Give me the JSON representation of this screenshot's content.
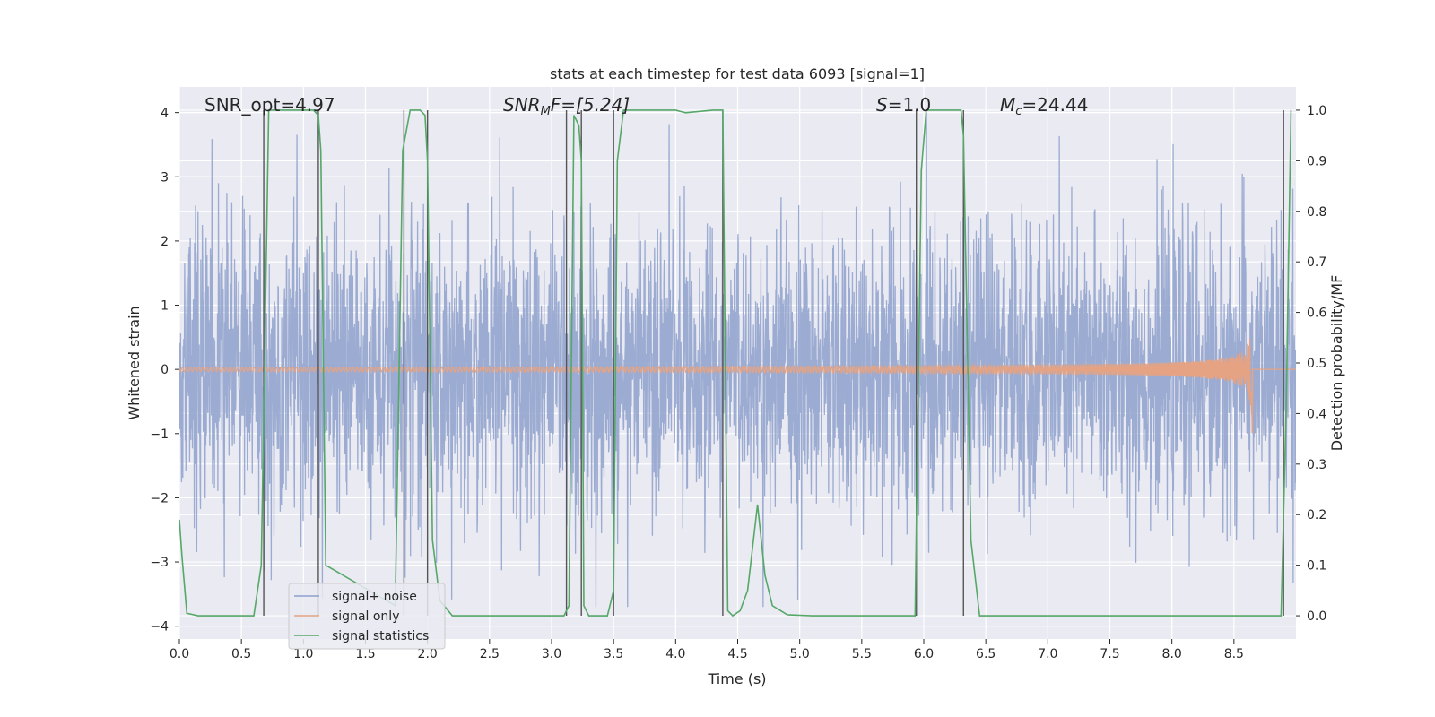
{
  "chart_data": {
    "type": "line",
    "title": "stats at each timestep for test data 6093 [signal=1]",
    "xlabel": "Time (s)",
    "ylabel": "Whitened strain",
    "ylabel_right": "Detection probability/MF",
    "xlim": [
      0,
      9.0
    ],
    "ylim": [
      -4.2,
      4.4
    ],
    "ylim_right": [
      -0.046,
      1.046
    ],
    "x_ticks": [
      "0.0",
      "0.5",
      "1.0",
      "1.5",
      "2.0",
      "2.5",
      "3.0",
      "3.5",
      "4.0",
      "4.5",
      "5.0",
      "5.5",
      "6.0",
      "6.5",
      "7.0",
      "7.5",
      "8.0",
      "8.5"
    ],
    "y_ticks": [
      "4",
      "3",
      "2",
      "1",
      "0",
      "−1",
      "−2",
      "−3",
      "−4"
    ],
    "y_right_ticks": [
      "1.0",
      "0.9",
      "0.8",
      "0.7",
      "0.6",
      "0.5",
      "0.4",
      "0.3",
      "0.2",
      "0.1",
      "0.0"
    ],
    "grid": true,
    "legend_position": "lower-left",
    "annotations": {
      "snr_opt": "SNR_opt=4.97",
      "snr_mf_base": "SNR",
      "snr_mf_sub": "M",
      "snr_mf_rest": "F=[5.24]",
      "s_var": "S",
      "s_rest": "=1.0",
      "mc_var": "M",
      "mc_sub": "c",
      "mc_rest": "=24.44"
    },
    "series": [
      {
        "name": "signal+ noise",
        "color": "#8da0cb",
        "std": 1.1,
        "peak_range": [
          -3.7,
          4.0
        ]
      },
      {
        "name": "signal only",
        "color": "#e5a383",
        "merger_time": 8.65,
        "peak_amplitude": 1.1
      },
      {
        "name": "signal statistics",
        "color": "#55a868",
        "x": [
          0.0,
          0.02,
          0.06,
          0.15,
          0.6,
          0.66,
          0.72,
          0.74,
          0.78,
          1.0,
          1.08,
          1.12,
          1.14,
          1.18,
          1.74,
          1.8,
          1.86,
          1.88,
          1.94,
          1.98,
          2.0,
          2.04,
          2.1,
          2.2,
          3.1,
          3.14,
          3.18,
          3.22,
          3.24,
          3.26,
          3.3,
          3.45,
          3.5,
          3.53,
          3.58,
          4.0,
          4.08,
          4.3,
          4.38,
          4.42,
          4.46,
          4.52,
          4.58,
          4.66,
          4.72,
          4.78,
          4.9,
          5.1,
          5.93,
          5.98,
          6.02,
          6.3,
          6.32,
          6.38,
          6.45,
          8.88,
          8.92,
          8.96
        ],
        "y": [
          0.19,
          0.12,
          0.005,
          0.0,
          0.0,
          0.1,
          1.0,
          1.0,
          1.0,
          1.0,
          1.0,
          0.99,
          0.92,
          0.1,
          0.02,
          0.92,
          1.0,
          1.0,
          1.0,
          0.99,
          0.9,
          0.15,
          0.03,
          0.0,
          0.0,
          0.02,
          0.99,
          0.97,
          0.9,
          0.02,
          0.0,
          0.0,
          0.05,
          0.9,
          1.0,
          1.0,
          0.995,
          1.0,
          1.0,
          0.01,
          0.0,
          0.01,
          0.05,
          0.22,
          0.08,
          0.02,
          0.002,
          0.0,
          0.0,
          0.88,
          1.0,
          1.0,
          0.95,
          0.15,
          0.0,
          0.0,
          0.4,
          1.0
        ]
      }
    ],
    "vertical_lines": [
      0.68,
      1.12,
      1.81,
      2.0,
      3.12,
      3.24,
      3.5,
      4.38,
      5.94,
      6.32,
      8.9
    ]
  }
}
